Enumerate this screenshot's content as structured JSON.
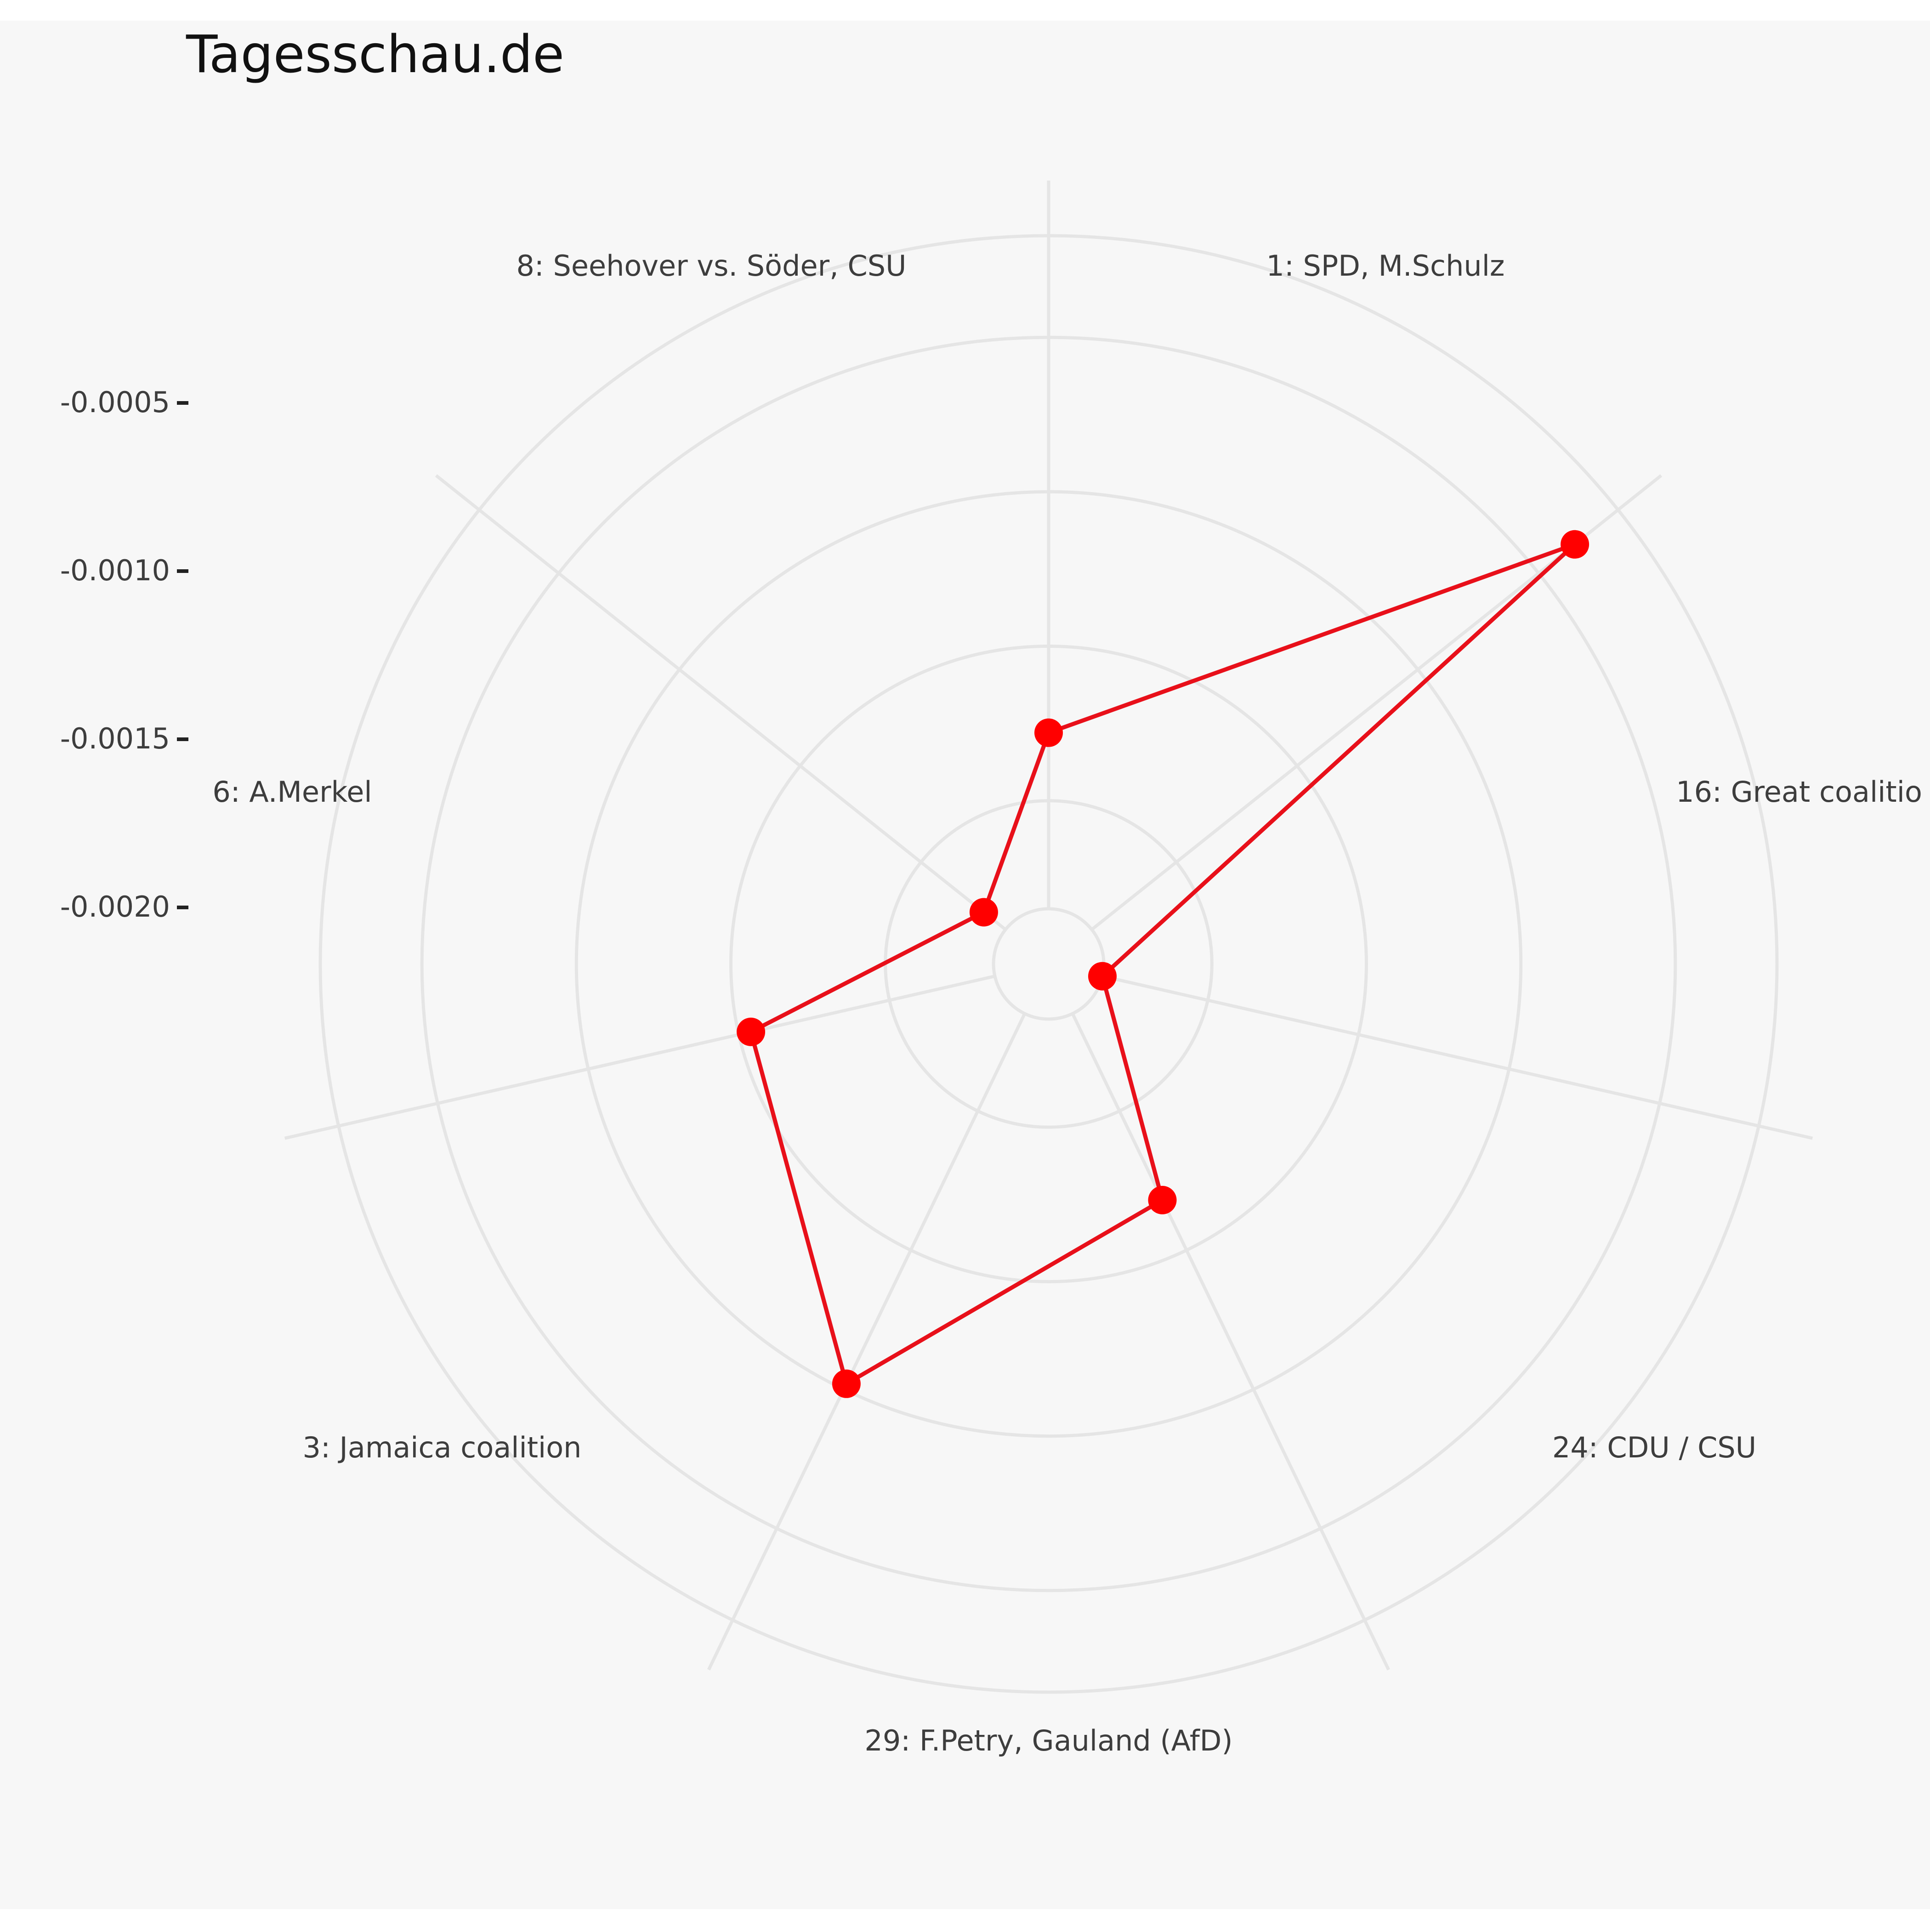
{
  "chart_data": {
    "type": "radar",
    "title": "Tagesschau.de",
    "axes": [
      "1: SPD, M.Schulz",
      "16: Great coalitio",
      "24: CDU / CSU",
      "29: F.Petry, Gauland (AfD)",
      "3: Jamaica coalition",
      "6: A.Merkel",
      "8: Seehover vs. Söder, CSU"
    ],
    "radial_ticks": [
      "-0.0005",
      "-0.0010",
      "-0.0015",
      "-0.0020"
    ],
    "radial_tick_values": [
      -0.0005,
      -0.001,
      -0.0015,
      -0.002
    ],
    "rlim": [
      -0.00235,
      0.0
    ],
    "series": [
      {
        "values": [
          -0.00178,
          -0.00035,
          -0.00235,
          -0.00168,
          -0.00102,
          -0.00154,
          -0.00226
        ]
      }
    ],
    "line_color": "#e8101a",
    "marker_color": "#ff0000",
    "grid": true,
    "background": "#f7f7f7",
    "grid_color": "#e5e5e5",
    "text_color": "#3d3d3d"
  }
}
